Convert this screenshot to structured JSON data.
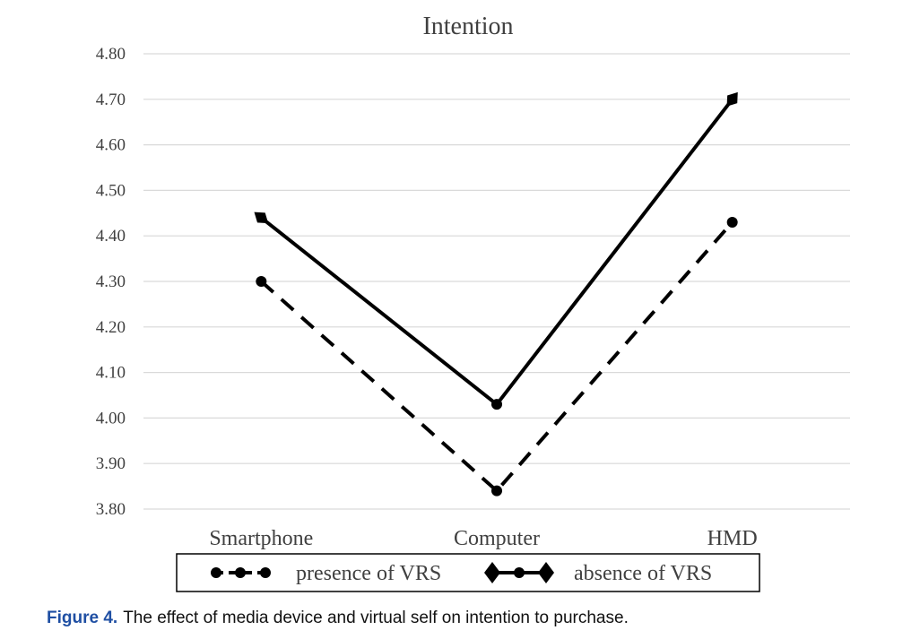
{
  "chart_data": {
    "type": "line",
    "title": "Intention",
    "categories": [
      "Smartphone",
      "Computer",
      "HMD"
    ],
    "ylim": [
      3.8,
      4.8
    ],
    "yticks": [
      "4.80",
      "4.70",
      "4.60",
      "4.50",
      "4.40",
      "4.30",
      "4.20",
      "4.10",
      "4.00",
      "3.90",
      "3.80"
    ],
    "grid": true,
    "legend_position": "bottom",
    "series": [
      {
        "name": "presence of VRS",
        "values": [
          4.3,
          3.84,
          4.43
        ],
        "line_style": "dashed",
        "marker": "circle",
        "color": "#000000"
      },
      {
        "name": "absence of VRS",
        "values": [
          4.44,
          4.03,
          4.7
        ],
        "line_style": "solid",
        "marker": "diamond",
        "color": "#000000"
      }
    ]
  },
  "caption": {
    "label": "Figure 4.",
    "text": "The effect of media device and virtual self on intention to purchase."
  },
  "colors": {
    "caption_label": "#1f4fa3",
    "grid": "#d9d9d9",
    "text": "#404040"
  }
}
